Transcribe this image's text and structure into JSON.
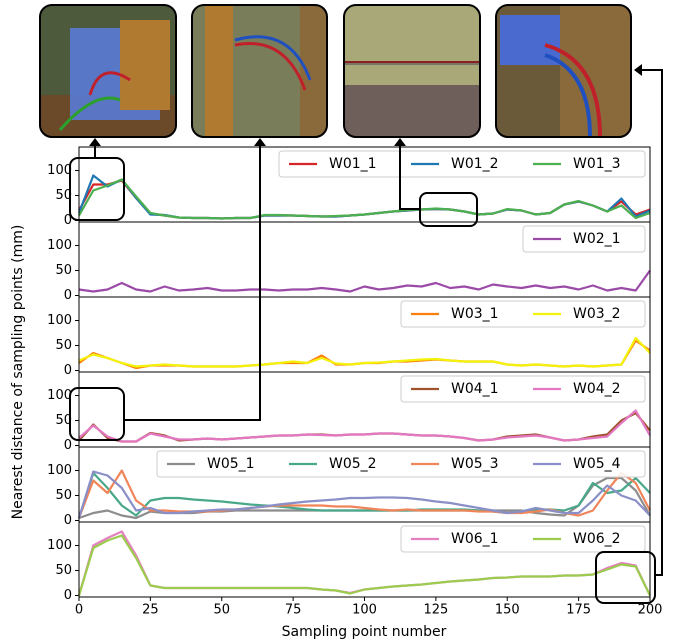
{
  "figure": {
    "ylabel": "Nearest distance of sampling points (mm)",
    "xlabel": "Sampling point number"
  },
  "chart_data": [
    {
      "type": "line",
      "xlim": [
        0,
        200
      ],
      "ylim": [
        -3,
        147
      ],
      "yticks": [
        0,
        50,
        100
      ],
      "x": [
        0,
        5,
        10,
        15,
        20,
        25,
        30,
        35,
        40,
        45,
        50,
        55,
        60,
        65,
        70,
        75,
        80,
        85,
        90,
        95,
        100,
        105,
        110,
        115,
        120,
        125,
        130,
        135,
        140,
        145,
        150,
        155,
        160,
        165,
        170,
        175,
        180,
        185,
        190,
        195,
        200
      ],
      "series": [
        {
          "name": "W01_1",
          "color": "#d62728",
          "values": [
            20,
            72,
            72,
            80,
            45,
            14,
            10,
            6,
            5,
            5,
            4,
            5,
            5,
            10,
            10,
            10,
            9,
            8,
            8,
            10,
            12,
            15,
            18,
            20,
            22,
            23,
            22,
            18,
            12,
            14,
            22,
            20,
            12,
            15,
            32,
            38,
            30,
            18,
            38,
            12,
            22
          ]
        },
        {
          "name": "W01_2",
          "color": "#1f77b4",
          "values": [
            15,
            90,
            68,
            82,
            45,
            12,
            11,
            6,
            5,
            5,
            4,
            5,
            5,
            10,
            10,
            10,
            9,
            8,
            8,
            10,
            12,
            15,
            18,
            20,
            22,
            23,
            22,
            18,
            12,
            14,
            22,
            20,
            12,
            15,
            32,
            38,
            30,
            18,
            44,
            8,
            20
          ]
        },
        {
          "name": "W01_3",
          "color": "#4caf50",
          "values": [
            10,
            60,
            70,
            82,
            48,
            15,
            10,
            6,
            5,
            5,
            4,
            5,
            5,
            11,
            11,
            10,
            9,
            8,
            9,
            10,
            12,
            15,
            18,
            21,
            22,
            24,
            22,
            18,
            12,
            14,
            23,
            20,
            12,
            15,
            32,
            39,
            30,
            18,
            30,
            5,
            15
          ]
        }
      ]
    },
    {
      "type": "line",
      "xlim": [
        0,
        200
      ],
      "ylim": [
        -3,
        147
      ],
      "yticks": [
        0,
        50,
        100
      ],
      "x": [
        0,
        5,
        10,
        15,
        20,
        25,
        30,
        35,
        40,
        45,
        50,
        55,
        60,
        65,
        70,
        75,
        80,
        85,
        90,
        95,
        100,
        105,
        110,
        115,
        120,
        125,
        130,
        135,
        140,
        145,
        150,
        155,
        160,
        165,
        170,
        175,
        180,
        185,
        190,
        195,
        200
      ],
      "series": [
        {
          "name": "W02_1",
          "color": "#9b4aa8",
          "values": [
            12,
            8,
            12,
            25,
            12,
            8,
            18,
            10,
            12,
            15,
            10,
            10,
            12,
            12,
            10,
            12,
            12,
            15,
            12,
            8,
            18,
            12,
            15,
            20,
            18,
            25,
            15,
            18,
            12,
            22,
            18,
            15,
            20,
            15,
            18,
            12,
            20,
            10,
            15,
            10,
            50
          ]
        }
      ]
    },
    {
      "type": "line",
      "xlim": [
        0,
        200
      ],
      "ylim": [
        -3,
        147
      ],
      "yticks": [
        0,
        50,
        100
      ],
      "x": [
        0,
        5,
        10,
        15,
        20,
        25,
        30,
        35,
        40,
        45,
        50,
        55,
        60,
        65,
        70,
        75,
        80,
        85,
        90,
        95,
        100,
        105,
        110,
        115,
        120,
        125,
        130,
        135,
        140,
        145,
        150,
        155,
        160,
        165,
        170,
        175,
        180,
        185,
        190,
        195,
        200
      ],
      "series": [
        {
          "name": "W03_1",
          "color": "#ff7f0e",
          "values": [
            15,
            35,
            25,
            15,
            5,
            10,
            10,
            10,
            8,
            8,
            8,
            8,
            10,
            12,
            15,
            15,
            15,
            30,
            12,
            12,
            15,
            15,
            18,
            18,
            20,
            22,
            20,
            18,
            18,
            18,
            12,
            10,
            12,
            10,
            8,
            10,
            8,
            10,
            12,
            60,
            40
          ]
        },
        {
          "name": "W03_2",
          "color": "#f2f20a",
          "values": [
            20,
            32,
            25,
            15,
            8,
            10,
            12,
            10,
            8,
            8,
            8,
            8,
            10,
            12,
            15,
            18,
            15,
            25,
            14,
            12,
            15,
            16,
            18,
            20,
            22,
            23,
            20,
            18,
            18,
            18,
            12,
            10,
            12,
            10,
            8,
            10,
            8,
            10,
            12,
            65,
            35
          ]
        }
      ]
    },
    {
      "type": "line",
      "xlim": [
        0,
        200
      ],
      "ylim": [
        -3,
        147
      ],
      "yticks": [
        0,
        50,
        100
      ],
      "x": [
        0,
        5,
        10,
        15,
        20,
        25,
        30,
        35,
        40,
        45,
        50,
        55,
        60,
        65,
        70,
        75,
        80,
        85,
        90,
        95,
        100,
        105,
        110,
        115,
        120,
        125,
        130,
        135,
        140,
        145,
        150,
        155,
        160,
        165,
        170,
        175,
        180,
        185,
        190,
        195,
        200
      ],
      "series": [
        {
          "name": "W04_1",
          "color": "#a0522d",
          "values": [
            10,
            42,
            15,
            8,
            8,
            25,
            20,
            10,
            12,
            14,
            12,
            14,
            16,
            18,
            20,
            20,
            22,
            22,
            20,
            22,
            22,
            24,
            24,
            22,
            20,
            20,
            18,
            15,
            10,
            12,
            18,
            20,
            22,
            16,
            10,
            12,
            18,
            22,
            50,
            65,
            30
          ]
        },
        {
          "name": "W04_2",
          "color": "#e377c2",
          "values": [
            15,
            40,
            18,
            8,
            8,
            24,
            18,
            12,
            12,
            14,
            12,
            14,
            16,
            18,
            20,
            20,
            22,
            21,
            20,
            22,
            22,
            24,
            24,
            22,
            20,
            20,
            18,
            15,
            10,
            12,
            16,
            18,
            20,
            16,
            10,
            12,
            15,
            18,
            45,
            70,
            20
          ]
        }
      ]
    },
    {
      "type": "line",
      "xlim": [
        0,
        200
      ],
      "ylim": [
        -3,
        147
      ],
      "yticks": [
        0,
        50,
        100
      ],
      "x": [
        0,
        5,
        10,
        15,
        20,
        25,
        30,
        35,
        40,
        45,
        50,
        55,
        60,
        65,
        70,
        75,
        80,
        85,
        90,
        95,
        100,
        105,
        110,
        115,
        120,
        125,
        130,
        135,
        140,
        145,
        150,
        155,
        160,
        165,
        170,
        175,
        180,
        185,
        190,
        195,
        200
      ],
      "series": [
        {
          "name": "W05_1",
          "color": "#8c8c8c",
          "values": [
            5,
            15,
            20,
            10,
            5,
            18,
            15,
            15,
            15,
            18,
            18,
            20,
            20,
            20,
            20,
            20,
            20,
            20,
            20,
            20,
            20,
            20,
            20,
            20,
            20,
            20,
            20,
            20,
            20,
            20,
            20,
            20,
            15,
            12,
            10,
            30,
            70,
            85,
            85,
            60,
            10
          ]
        },
        {
          "name": "W05_2",
          "color": "#4aa88a",
          "values": [
            5,
            95,
            65,
            30,
            10,
            40,
            45,
            45,
            42,
            40,
            38,
            35,
            32,
            30,
            28,
            25,
            22,
            20,
            20,
            20,
            20,
            20,
            20,
            20,
            22,
            22,
            22,
            22,
            20,
            18,
            15,
            18,
            22,
            22,
            20,
            30,
            75,
            55,
            60,
            85,
            55
          ]
        },
        {
          "name": "W05_3",
          "color": "#f0855a",
          "values": [
            5,
            80,
            55,
            100,
            40,
            20,
            20,
            18,
            18,
            18,
            20,
            22,
            25,
            28,
            30,
            30,
            30,
            30,
            28,
            28,
            25,
            22,
            20,
            22,
            20,
            20,
            20,
            20,
            18,
            18,
            15,
            15,
            18,
            22,
            15,
            10,
            20,
            60,
            95,
            75,
            20
          ]
        },
        {
          "name": "W05_4",
          "color": "#8a8fc8",
          "values": [
            5,
            98,
            90,
            65,
            20,
            25,
            15,
            15,
            18,
            20,
            22,
            22,
            25,
            28,
            32,
            35,
            38,
            40,
            42,
            45,
            45,
            46,
            46,
            45,
            42,
            38,
            35,
            30,
            25,
            20,
            15,
            18,
            25,
            20,
            15,
            15,
            40,
            70,
            50,
            40,
            10
          ]
        }
      ]
    },
    {
      "type": "line",
      "xlim": [
        0,
        200
      ],
      "ylim": [
        -3,
        147
      ],
      "yticks": [
        0,
        50,
        100
      ],
      "xticks": [
        0,
        25,
        50,
        75,
        100,
        125,
        150,
        175,
        200
      ],
      "x": [
        0,
        5,
        10,
        15,
        20,
        25,
        30,
        35,
        40,
        45,
        50,
        55,
        60,
        65,
        70,
        75,
        80,
        85,
        90,
        95,
        100,
        105,
        110,
        115,
        120,
        125,
        130,
        135,
        140,
        145,
        150,
        155,
        160,
        165,
        170,
        175,
        180,
        185,
        190,
        195,
        200
      ],
      "series": [
        {
          "name": "W06_1",
          "color": "#e47fc0",
          "values": [
            0,
            100,
            115,
            128,
            80,
            20,
            15,
            15,
            15,
            15,
            15,
            15,
            15,
            15,
            15,
            15,
            15,
            12,
            10,
            5,
            12,
            15,
            18,
            20,
            22,
            25,
            28,
            30,
            32,
            35,
            36,
            38,
            38,
            38,
            40,
            40,
            42,
            55,
            65,
            60,
            0
          ]
        },
        {
          "name": "W06_2",
          "color": "#9ccc4e",
          "values": [
            0,
            95,
            110,
            120,
            75,
            20,
            15,
            15,
            15,
            15,
            15,
            15,
            15,
            15,
            15,
            15,
            15,
            12,
            10,
            4,
            12,
            15,
            18,
            20,
            22,
            25,
            28,
            30,
            32,
            35,
            36,
            38,
            38,
            38,
            40,
            40,
            42,
            52,
            62,
            58,
            0
          ]
        }
      ]
    }
  ]
}
